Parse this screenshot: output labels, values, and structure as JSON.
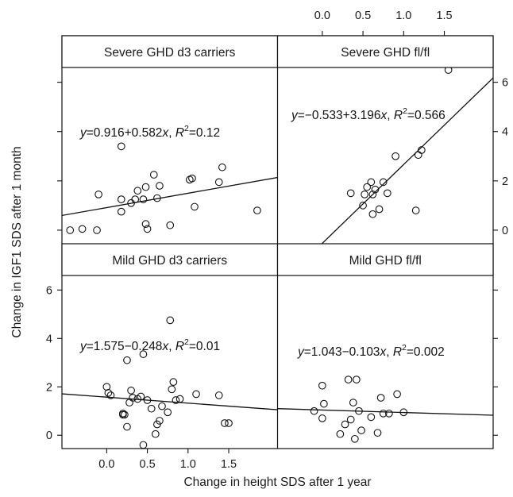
{
  "chart_data": {
    "type": "scatter",
    "layout": "2x2 lattice",
    "xlabel": "Change in height SDS after 1 year",
    "ylabel": "Change in IGF1 SDS after 1 month",
    "xlim": [
      -0.55,
      2.1
    ],
    "ylim": [
      -0.55,
      6.6
    ],
    "x_ticks": [
      0.0,
      0.5,
      1.0,
      1.5
    ],
    "x_tick_labels": [
      "0.0",
      "0.5",
      "1.0",
      "1.5"
    ],
    "y_ticks": [
      0,
      2,
      4,
      6
    ],
    "y_tick_labels": [
      "0",
      "2",
      "4",
      "6"
    ],
    "panels": [
      {
        "strip": "Severe GHD d3 carriers",
        "position": "top-left",
        "equation": {
          "prefix": "y",
          "body": "=0.916+0.582",
          "var": "x",
          "sep": ", ",
          "r2_var": "R",
          "r2_exp": "2",
          "r2_value": "=0.12"
        },
        "fit": {
          "intercept": 0.916,
          "slope": 0.582
        },
        "points": [
          [
            -0.45,
            0.0
          ],
          [
            -0.3,
            0.05
          ],
          [
            -0.12,
            0.0
          ],
          [
            -0.1,
            1.45
          ],
          [
            0.18,
            3.4
          ],
          [
            0.18,
            0.75
          ],
          [
            0.18,
            1.25
          ],
          [
            0.3,
            1.1
          ],
          [
            0.35,
            1.25
          ],
          [
            0.38,
            1.6
          ],
          [
            0.45,
            1.25
          ],
          [
            0.48,
            1.75
          ],
          [
            0.48,
            0.25
          ],
          [
            0.5,
            0.05
          ],
          [
            0.58,
            2.25
          ],
          [
            0.62,
            1.3
          ],
          [
            0.65,
            1.8
          ],
          [
            0.78,
            0.2
          ],
          [
            1.02,
            2.05
          ],
          [
            1.05,
            2.1
          ],
          [
            1.08,
            0.95
          ],
          [
            1.38,
            1.95
          ],
          [
            1.42,
            2.55
          ],
          [
            1.85,
            0.8
          ]
        ]
      },
      {
        "strip": "Severe GHD fl/fl",
        "position": "top-right",
        "equation": {
          "prefix": "y",
          "body": "=−0.533+3.196",
          "var": "x",
          "sep": ", ",
          "r2_var": "R",
          "r2_exp": "2",
          "r2_value": "=0.566"
        },
        "fit": {
          "intercept": -0.533,
          "slope": 3.196
        },
        "points": [
          [
            0.35,
            1.5
          ],
          [
            0.5,
            1.0
          ],
          [
            0.52,
            1.45
          ],
          [
            0.55,
            1.75
          ],
          [
            0.6,
            1.95
          ],
          [
            0.62,
            0.65
          ],
          [
            0.62,
            1.45
          ],
          [
            0.65,
            1.65
          ],
          [
            0.7,
            0.85
          ],
          [
            0.75,
            1.95
          ],
          [
            0.8,
            1.5
          ],
          [
            0.9,
            3.0
          ],
          [
            1.15,
            0.8
          ],
          [
            1.18,
            3.05
          ],
          [
            1.22,
            3.25
          ],
          [
            1.55,
            6.5
          ]
        ]
      },
      {
        "strip": "Mild GHD d3 carriers",
        "position": "bottom-left",
        "equation": {
          "prefix": "y",
          "body": "=1.575−0.248",
          "var": "x",
          "sep": ", ",
          "r2_var": "R",
          "r2_exp": "2",
          "r2_value": "=0.01"
        },
        "fit": {
          "intercept": 1.575,
          "slope": -0.248
        },
        "points": [
          [
            0.0,
            2.0
          ],
          [
            0.02,
            1.75
          ],
          [
            0.05,
            1.65
          ],
          [
            0.2,
            0.9
          ],
          [
            0.2,
            0.85
          ],
          [
            0.22,
            0.85
          ],
          [
            0.25,
            3.1
          ],
          [
            0.25,
            0.35
          ],
          [
            0.28,
            1.35
          ],
          [
            0.3,
            1.85
          ],
          [
            0.32,
            1.55
          ],
          [
            0.38,
            1.5
          ],
          [
            0.42,
            1.6
          ],
          [
            0.45,
            3.35
          ],
          [
            0.45,
            -0.4
          ],
          [
            0.5,
            1.45
          ],
          [
            0.55,
            1.1
          ],
          [
            0.6,
            0.05
          ],
          [
            0.62,
            0.45
          ],
          [
            0.65,
            0.6
          ],
          [
            0.68,
            1.2
          ],
          [
            0.75,
            0.95
          ],
          [
            0.78,
            4.75
          ],
          [
            0.8,
            1.9
          ],
          [
            0.82,
            2.2
          ],
          [
            0.85,
            1.45
          ],
          [
            0.9,
            1.5
          ],
          [
            1.1,
            1.7
          ],
          [
            1.38,
            1.65
          ],
          [
            1.45,
            0.5
          ],
          [
            1.5,
            0.5
          ]
        ]
      },
      {
        "strip": "Mild GHD fl/fl",
        "position": "bottom-right",
        "equation": {
          "prefix": "y",
          "body": "=1.043−0.103",
          "var": "x",
          "sep": ", ",
          "r2_var": "R",
          "r2_exp": "2",
          "r2_value": "=0.002"
        },
        "fit": {
          "intercept": 1.043,
          "slope": -0.103
        },
        "points": [
          [
            -0.1,
            1.0
          ],
          [
            0.0,
            0.7
          ],
          [
            0.0,
            2.05
          ],
          [
            0.02,
            1.3
          ],
          [
            0.22,
            0.05
          ],
          [
            0.28,
            0.45
          ],
          [
            0.32,
            2.3
          ],
          [
            0.35,
            0.65
          ],
          [
            0.38,
            1.35
          ],
          [
            0.4,
            -0.15
          ],
          [
            0.42,
            2.3
          ],
          [
            0.45,
            1.0
          ],
          [
            0.48,
            0.2
          ],
          [
            0.6,
            0.75
          ],
          [
            0.68,
            0.1
          ],
          [
            0.72,
            1.55
          ],
          [
            0.75,
            0.9
          ],
          [
            0.82,
            0.9
          ],
          [
            0.92,
            1.7
          ],
          [
            1.0,
            0.95
          ]
        ]
      }
    ]
  }
}
